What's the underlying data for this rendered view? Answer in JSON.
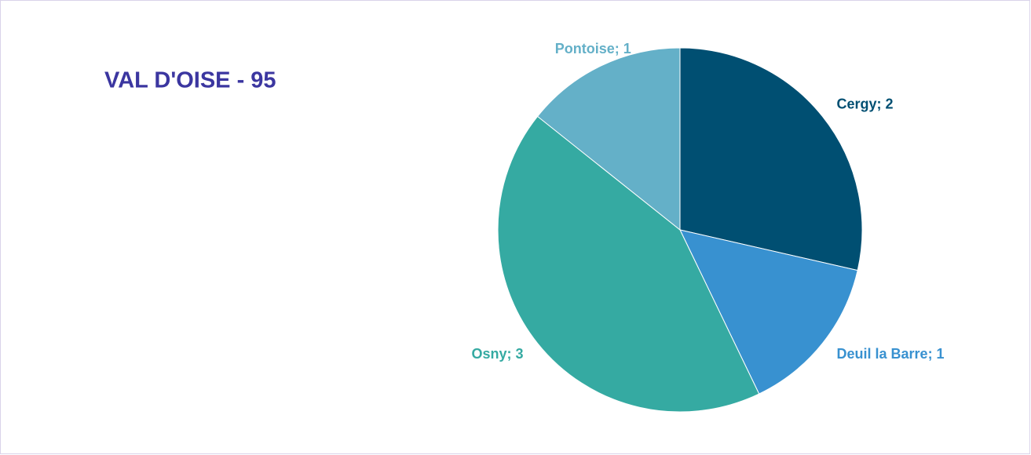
{
  "chart_data": {
    "type": "pie",
    "title": "VAL D'OISE - 95",
    "categories": [
      "Cergy",
      "Deuil la Barre",
      "Osny",
      "Pontoise"
    ],
    "values": [
      2,
      1,
      3,
      1
    ],
    "value_labels": [
      "Cergy; 2",
      "Deuil la Barre; 1",
      "Osny; 3",
      "Pontoise; 1"
    ],
    "colors": [
      "#004f72",
      "#3891d0",
      "#35aaa2",
      "#64b0c8"
    ]
  }
}
